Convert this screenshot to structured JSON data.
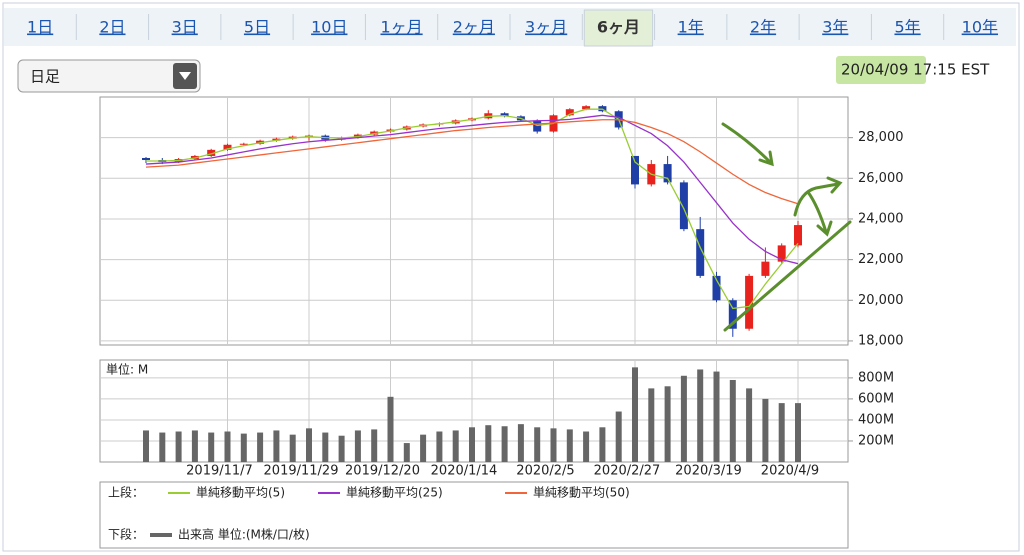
{
  "tabs": [
    {
      "label": "1日"
    },
    {
      "label": "2日"
    },
    {
      "label": "3日"
    },
    {
      "label": "5日"
    },
    {
      "label": "10日"
    },
    {
      "label": "1ヶ月"
    },
    {
      "label": "2ヶ月"
    },
    {
      "label": "3ヶ月"
    },
    {
      "label": "6ヶ月",
      "selected": true
    },
    {
      "label": "1年"
    },
    {
      "label": "2年"
    },
    {
      "label": "3年"
    },
    {
      "label": "5年"
    },
    {
      "label": "10年"
    }
  ],
  "dropdown": "日足",
  "timestamp": "20/04/09 17:15 EST",
  "legend": {
    "upper_label": "上段：",
    "lower_label": "下段："
  },
  "chart_data": [
    {
      "type": "candlestick",
      "up_color": "#e8231e",
      "down_color": "#1f3fa6",
      "grid": true,
      "ylim": [
        17800,
        30000
      ],
      "yticks": [
        {
          "value": 18000,
          "label": "18,000"
        },
        {
          "value": 20000,
          "label": "20,000"
        },
        {
          "value": 22000,
          "label": "22,000"
        },
        {
          "value": 24000,
          "label": "24,000"
        },
        {
          "value": 26000,
          "label": "26,000"
        },
        {
          "value": 28000,
          "label": "28,000"
        }
      ],
      "open": [
        27000,
        26900,
        26800,
        26950,
        27100,
        27400,
        27650,
        27700,
        27850,
        27950,
        28050,
        28100,
        27900,
        28000,
        28150,
        28300,
        28400,
        28550,
        28650,
        28700,
        28850,
        28950,
        29200,
        29050,
        28850,
        28300,
        29100,
        29400,
        29550,
        29300,
        27100,
        25700,
        26700,
        25800,
        23500,
        21200,
        20000,
        18600,
        21200,
        21900,
        22700
      ],
      "high": [
        27050,
        27000,
        27000,
        27150,
        27450,
        27700,
        27750,
        27900,
        28000,
        28100,
        28150,
        28150,
        28050,
        28200,
        28350,
        28450,
        28600,
        28700,
        28750,
        28900,
        29000,
        29350,
        29250,
        29100,
        28900,
        29150,
        29450,
        29600,
        29600,
        29350,
        27100,
        26900,
        27100,
        25900,
        24100,
        21400,
        20100,
        21300,
        22600,
        22800,
        23900
      ],
      "low": [
        26750,
        26700,
        26750,
        26900,
        27050,
        27350,
        27600,
        27650,
        27800,
        27900,
        27850,
        27800,
        27850,
        27950,
        28100,
        28250,
        28350,
        28500,
        28550,
        28650,
        28800,
        28900,
        29000,
        28800,
        28200,
        28250,
        29050,
        29350,
        29250,
        28400,
        25500,
        25600,
        25700,
        23400,
        21100,
        19900,
        18200,
        18500,
        21100,
        21800,
        22600
      ],
      "close": [
        26900,
        26800,
        26950,
        27100,
        27400,
        27650,
        27700,
        27850,
        27950,
        28050,
        28100,
        27900,
        28000,
        28150,
        28300,
        28400,
        28550,
        28650,
        28700,
        28850,
        28950,
        29200,
        29050,
        28850,
        28300,
        29100,
        29400,
        29550,
        29300,
        28500,
        25700,
        26700,
        25800,
        23500,
        21200,
        20000,
        18600,
        21200,
        21900,
        22700,
        23700
      ],
      "series": [
        {
          "name": "単純移動平均(5)",
          "color": "#9acd32",
          "values": [
            26850,
            26850,
            26880,
            27000,
            27200,
            27450,
            27600,
            27750,
            27870,
            27980,
            28050,
            28000,
            27980,
            28050,
            28200,
            28330,
            28480,
            28600,
            28680,
            28780,
            28900,
            29050,
            29080,
            28950,
            28600,
            28700,
            29150,
            29400,
            29400,
            28900,
            26800,
            26200,
            26000,
            24500,
            22600,
            21000,
            19600,
            19700,
            20800,
            21800,
            22800
          ]
        },
        {
          "name": "単純移動平均(25)",
          "color": "#9932cc",
          "values": [
            26700,
            26750,
            26800,
            26900,
            27000,
            27150,
            27300,
            27450,
            27580,
            27700,
            27800,
            27870,
            27930,
            28000,
            28080,
            28150,
            28250,
            28350,
            28450,
            28520,
            28600,
            28680,
            28750,
            28800,
            28830,
            28850,
            28900,
            29000,
            29100,
            29000,
            28600,
            28200,
            27600,
            26800,
            25800,
            24800,
            23800,
            23000,
            22400,
            22000,
            21800
          ]
        },
        {
          "name": "単純移動平均(50)",
          "color": "#f0663a",
          "values": [
            26550,
            26600,
            26650,
            26750,
            26850,
            26950,
            27050,
            27150,
            27250,
            27350,
            27450,
            27550,
            27650,
            27750,
            27850,
            27950,
            28050,
            28150,
            28250,
            28350,
            28420,
            28500,
            28560,
            28620,
            28670,
            28720,
            28780,
            28830,
            28880,
            28880,
            28750,
            28500,
            28200,
            27800,
            27300,
            26750,
            26200,
            25700,
            25300,
            25000,
            24750
          ]
        }
      ]
    },
    {
      "type": "bar",
      "unit_label": "単位: M",
      "categories": [
        null,
        null,
        null,
        null,
        null,
        "2019/11/7",
        null,
        null,
        null,
        null,
        "2019/11/29",
        null,
        null,
        null,
        null,
        "2019/12/20",
        null,
        null,
        null,
        null,
        "2020/1/14",
        null,
        null,
        null,
        null,
        "2020/2/5",
        null,
        null,
        null,
        null,
        "2020/2/27",
        null,
        null,
        null,
        null,
        "2020/3/19",
        null,
        null,
        null,
        null,
        "2020/4/9"
      ],
      "ylim": [
        0,
        970
      ],
      "yticks": [
        {
          "value": 200,
          "label": "200M"
        },
        {
          "value": 400,
          "label": "400M"
        },
        {
          "value": 600,
          "label": "600M"
        },
        {
          "value": 800,
          "label": "800M"
        }
      ],
      "grid": true,
      "series": [
        {
          "name": "出来高 単位:(M株/口/枚)",
          "color": "#666666",
          "values": [
            300,
            280,
            290,
            300,
            280,
            290,
            270,
            280,
            300,
            260,
            320,
            280,
            250,
            300,
            310,
            620,
            180,
            260,
            290,
            300,
            330,
            350,
            340,
            360,
            330,
            320,
            310,
            290,
            330,
            480,
            900,
            700,
            720,
            820,
            880,
            860,
            780,
            700,
            600,
            560,
            560
          ]
        }
      ]
    }
  ]
}
